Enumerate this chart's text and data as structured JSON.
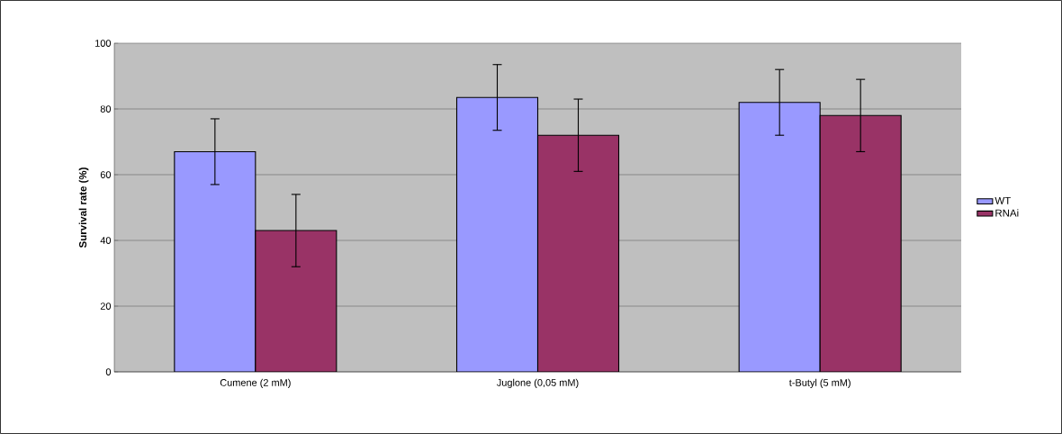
{
  "chart_data": {
    "type": "bar",
    "ylabel": "Survival rate (%)",
    "categories": [
      "Cumene (2 mM)",
      "Juglone (0,05 mM)",
      "t-Butyl (5 mM)"
    ],
    "series": [
      {
        "name": "WT",
        "color": "#9999ff",
        "values": [
          67,
          83.5,
          82
        ],
        "errors": [
          10,
          10,
          10
        ]
      },
      {
        "name": "RNAi",
        "color": "#993366",
        "values": [
          43,
          72,
          78
        ],
        "errors": [
          11,
          11,
          11
        ]
      }
    ],
    "ylim": [
      0,
      100
    ],
    "yticks": [
      0,
      20,
      40,
      60,
      80,
      100
    ],
    "grid": "y",
    "legend": "right"
  }
}
